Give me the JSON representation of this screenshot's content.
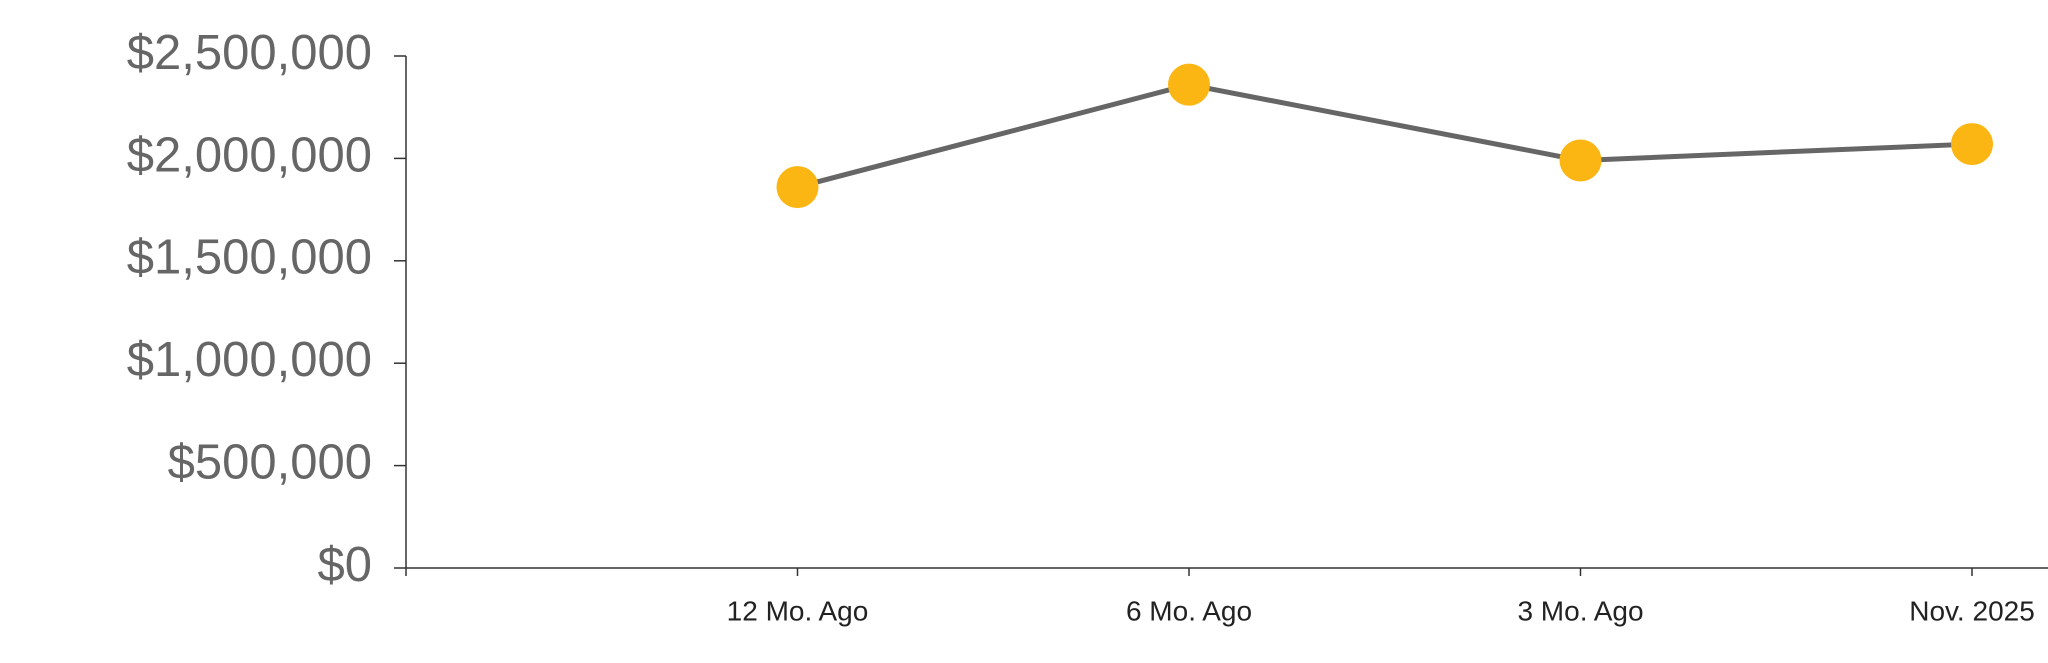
{
  "chart_data": {
    "type": "line",
    "categories": [
      "12 Mo. Ago",
      "6 Mo. Ago",
      "3 Mo. Ago",
      "Nov. 2025"
    ],
    "series": [
      {
        "values": [
          1860000,
          2360000,
          1990000,
          2070000
        ],
        "color": "#fbb614",
        "line_color": "#666666"
      }
    ],
    "ylim": [
      0,
      2500000
    ],
    "yticks": [
      {
        "value": 0,
        "label": "$0"
      },
      {
        "value": 500000,
        "label": "$500,000"
      },
      {
        "value": 1000000,
        "label": "$1,000,000"
      },
      {
        "value": 1500000,
        "label": "$1,500,000"
      },
      {
        "value": 2000000,
        "label": "$2,000,000"
      },
      {
        "value": 2500000,
        "label": "$2,500,000"
      }
    ]
  }
}
